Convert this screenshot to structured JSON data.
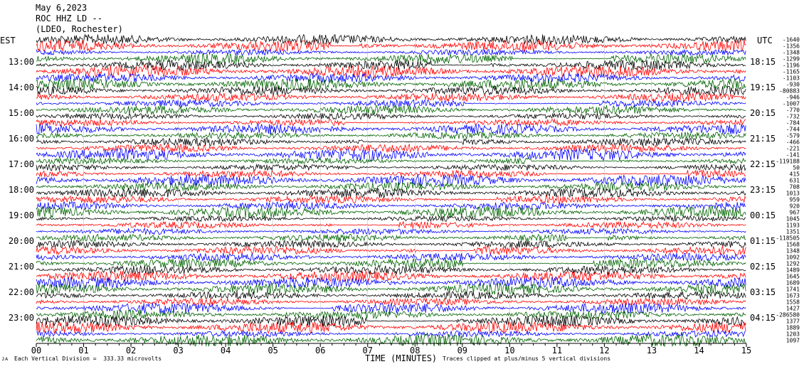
{
  "header": {
    "date": "May 6,2023",
    "station": "ROC HHZ LD --",
    "network": "(LDEO, Rochester)"
  },
  "footer": {
    "scale_note": "Each Vertical Division =  333.33 microvolts",
    "clip_note": "Traces clipped at plus/minus 5 vertical divisions",
    "corner_mark": "ᴊᴀ"
  },
  "chart_data": {
    "type": "line",
    "title": "May 6,2023 ROC HHZ LD -- (LDEO, Rochester)",
    "xlabel": "TIME (MINUTES)",
    "ylabel_left": "EST",
    "ylabel_right": "UTC",
    "xlim": [
      0,
      15
    ],
    "x_ticks": [
      "00",
      "01",
      "02",
      "03",
      "04",
      "05",
      "06",
      "07",
      "08",
      "09",
      "10",
      "11",
      "12",
      "13",
      "14",
      "15"
    ],
    "left_hour_labels": [
      "13:00",
      "14:00",
      "15:00",
      "16:00",
      "17:00",
      "18:00",
      "19:00",
      "20:00",
      "21:00",
      "22:00",
      "23:00"
    ],
    "right_hour_labels": [
      "18:15",
      "19:15",
      "20:15",
      "21:15",
      "22:15",
      "23:15",
      "00:15",
      "01:15",
      "02:15",
      "03:15",
      "04:15"
    ],
    "trace_colors": [
      "#000000",
      "#ff0000",
      "#0000ff",
      "#006400"
    ],
    "trace_offsets": [
      "-1640",
      "-1356",
      "-1348",
      "-1299",
      "-1196",
      "-1165",
      "-1103",
      "-930",
      "-80883",
      "-946",
      "-1007",
      "-770",
      "-732",
      "-784",
      "-744",
      "-579",
      "-466",
      "-221",
      "-141",
      "-119188",
      "50",
      "415",
      "631",
      "708",
      "1013",
      "959",
      "920",
      "967",
      "1045",
      "1193",
      "1351",
      "-118505",
      "1568",
      "1348",
      "1092",
      "1292",
      "1489",
      "1645",
      "1689",
      "1741",
      "1673",
      "1558",
      "1427",
      "-286580",
      "1377",
      "1889",
      "1203",
      "1097"
    ],
    "grid": false
  }
}
